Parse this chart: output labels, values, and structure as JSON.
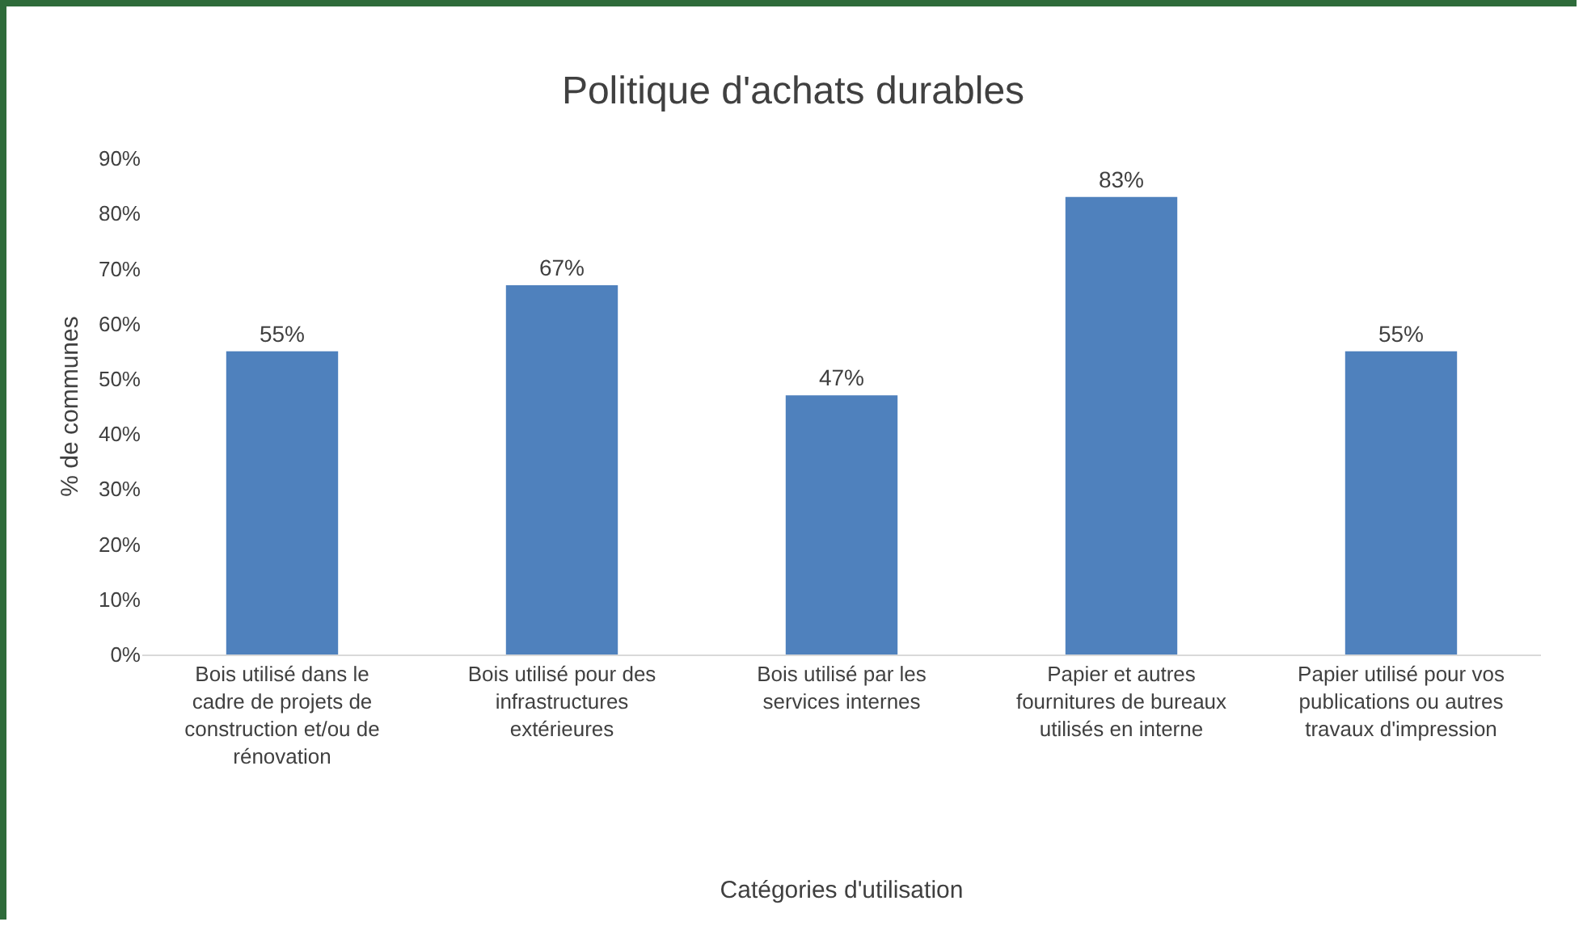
{
  "chart_data": {
    "type": "bar",
    "title": "Politique d'achats durables",
    "xlabel": "Catégories d'utilisation",
    "ylabel": "% de communes",
    "categories": [
      "Bois utilisé dans le cadre de projets de construction et/ou de rénovation",
      "Bois utilisé pour des infrastructures extérieures",
      "Bois utilisé par les services internes",
      "Papier et autres fournitures de bureaux utilisés en interne",
      "Papier utilisé pour vos publications ou autres travaux d'impression"
    ],
    "values": [
      55,
      67,
      47,
      83,
      55
    ],
    "color": "#4f81bd",
    "value_labels": [
      "55%",
      "67%",
      "47%",
      "83%",
      "55%"
    ],
    "ylim": [
      0,
      90
    ],
    "yticks": [
      {
        "value": 0,
        "label": "0%"
      },
      {
        "value": 10,
        "label": "10%"
      },
      {
        "value": 20,
        "label": "20%"
      },
      {
        "value": 30,
        "label": "30%"
      },
      {
        "value": 40,
        "label": "40%"
      },
      {
        "value": 50,
        "label": "50%"
      },
      {
        "value": 60,
        "label": "60%"
      },
      {
        "value": 70,
        "label": "70%"
      },
      {
        "value": 80,
        "label": "80%"
      },
      {
        "value": 90,
        "label": "90%"
      }
    ]
  }
}
